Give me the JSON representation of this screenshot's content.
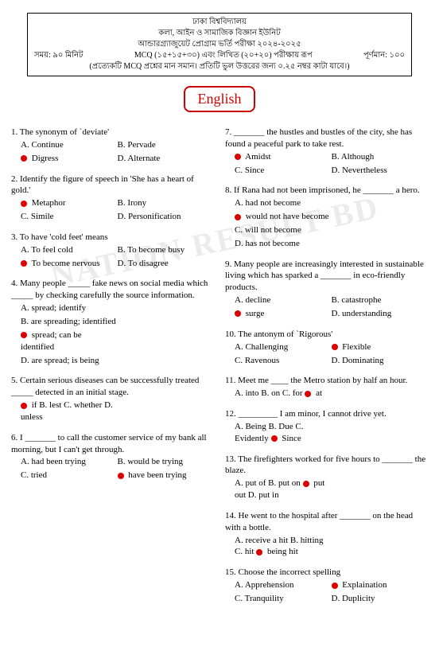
{
  "header": {
    "l1": "ঢাকা বিশ্ববিদ্যালয়",
    "l2": "কলা, আইন ও সামাজিক বিজ্ঞান ইউনিট",
    "l3": "আন্ডারগ্র্যাজুয়েট প্রোগ্রাম ভর্তি পরীক্ষা ২০২৪-২০২৫",
    "left": "সময়: ৯০ মিনিট",
    "mid": "MCQ (১৫+১৫+৩০) এবং লিখিত (২০+২০) পরীক্ষায় রূপ",
    "right": "পূর্ণমান: ১০০",
    "l5": "(প্রত্যেকটি MCQ প্রশ্নের মান সমান। প্রতিটি ভুল উত্তরের জন্য ০.২৫ নম্বর কাটা যাবে।)"
  },
  "subject": "English",
  "watermark": "NATION RESULT BD",
  "left_questions": [
    {
      "n": "1.",
      "text": "The synonym of `deviate'",
      "opts": [
        [
          "A. Continue",
          "B. Pervade"
        ],
        [
          "● Digress",
          "D. Alternate"
        ]
      ]
    },
    {
      "n": "2.",
      "text": "Identify the figure of speech in 'She has a heart of gold.'",
      "opts": [
        [
          "● Metaphor",
          "B. Irony"
        ],
        [
          "C. Simile",
          "D. Personification"
        ]
      ]
    },
    {
      "n": "3.",
      "text": "To have 'cold feet' means",
      "opts": [
        [
          "A. To feel cold",
          "B. To become busy"
        ],
        [
          "● To become nervous",
          "D. To disagree"
        ]
      ]
    },
    {
      "n": "4.",
      "text": "Many people _____ fake news on social media which _____ by checking carefully the source information.",
      "opts": [
        [
          "A. spread; identify",
          ""
        ],
        [
          "B. are spreading; identified",
          ""
        ],
        [
          "● spread; can be identified",
          ""
        ],
        [
          "D. are spread; is being",
          ""
        ]
      ]
    },
    {
      "n": "5.",
      "text": "Certain serious diseases can be successfully treated _____ detected in an initial stage.",
      "opts": [
        [
          "● if   B. lest   C. whether   D. unless",
          ""
        ]
      ]
    },
    {
      "n": "6.",
      "text": "I _______ to call the customer service of my bank all morning, but I can't get through.",
      "opts": [
        [
          "A. had been trying",
          "B. would be trying"
        ],
        [
          "C. tried",
          "● have been trying"
        ]
      ]
    }
  ],
  "right_questions": [
    {
      "n": "7.",
      "text": "_______ the hustles and bustles of the city, she has found a peaceful park to take rest.",
      "opts": [
        [
          "● Amidst",
          "B. Although"
        ],
        [
          "C. Since",
          "D. Nevertheless"
        ]
      ]
    },
    {
      "n": "8.",
      "text": "If Rana had not been imprisoned, he _______ a hero.",
      "opts": [
        [
          "A. had not become",
          ""
        ],
        [
          "● would not have become",
          ""
        ],
        [
          "C. will not become",
          ""
        ],
        [
          "D. has not become",
          ""
        ]
      ]
    },
    {
      "n": "9.",
      "text": "Many people are increasingly interested in sustainable living which has sparked a _______ in eco-friendly products.",
      "opts": [
        [
          "A. decline",
          "B. catastrophe"
        ],
        [
          "● surge",
          "D. understanding"
        ]
      ]
    },
    {
      "n": "10.",
      "text": "The antonym of `Rigorous'",
      "opts": [
        [
          "A. Challenging",
          "● Flexible"
        ],
        [
          "C. Ravenous",
          "D. Dominating"
        ]
      ]
    },
    {
      "n": "11.",
      "text": "Meet me ____ the Metro station by half an hour.",
      "opts": [
        [
          "A. into    B. on    C. for    ● at",
          ""
        ]
      ]
    },
    {
      "n": "12.",
      "text": "_________ I am minor, I cannot drive yet.",
      "opts": [
        [
          "A. Being   B. Due   C. Evidently   ● Since",
          ""
        ]
      ]
    },
    {
      "n": "13.",
      "text": "The firefighters worked for five hours to _______ the blaze.",
      "opts": [
        [
          "A. put of   B. put on   ● put out   D. put in",
          ""
        ]
      ]
    },
    {
      "n": "14.",
      "text": "He went to the hospital after _______ on the head with a bottle.",
      "opts": [
        [
          "A. receive a hit  B. hitting  C. hit  ● being hit",
          ""
        ]
      ]
    },
    {
      "n": "15.",
      "text": "Choose the incorrect spelling",
      "opts": [
        [
          "A. Apprehension",
          "● Explaination"
        ],
        [
          "C. Tranquility",
          "D. Duplicity"
        ]
      ]
    }
  ]
}
